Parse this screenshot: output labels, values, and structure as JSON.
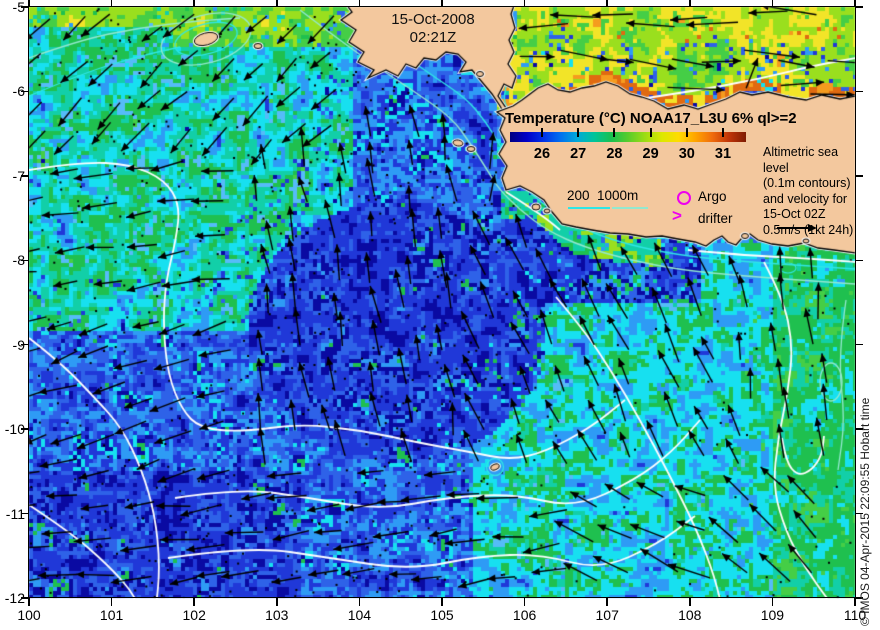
{
  "datestamp": {
    "date": "15-Oct-2008",
    "time": "02:21Z"
  },
  "colorbar": {
    "title": "Temperature (°C) NOAA17_L3U 6% ql>=2",
    "tick_labels": [
      "26",
      "27",
      "28",
      "29",
      "30",
      "31"
    ],
    "gradient": [
      "#000080",
      "#0000C8",
      "#0032E8",
      "#0070F0",
      "#00AAD8",
      "#00C49A",
      "#18C050",
      "#58CC2C",
      "#9CDC14",
      "#DCE800",
      "#FFDC00",
      "#FFA400",
      "#F06C0C",
      "#C03408",
      "#7E1C02"
    ]
  },
  "depth_legend": {
    "label": "200  1000m",
    "contour_200_color": "#2FE6E6",
    "contour_1000_color": "#93E8CF"
  },
  "observations": {
    "argo_label": "Argo",
    "drifter_label": "drifter",
    "drifter_symbol": ">",
    "marker_color": "#EE00EE"
  },
  "annotation": {
    "lines": [
      "Altimetric sea level",
      "(0.1m contours)",
      "and velocity for",
      "15-Oct 02Z",
      "0.5m/s (1kt 24h)"
    ]
  },
  "credit": "© IMOS 04-Apr-2015 22:09:55 Hobart time",
  "axes": {
    "x_tick_labels": [
      "100",
      "101",
      "102",
      "103",
      "104",
      "105",
      "106",
      "107",
      "108",
      "109",
      "110"
    ],
    "y_tick_labels": [
      "-5",
      "-6",
      "-7",
      "-8",
      "-9",
      "-10",
      "-11",
      "-12"
    ]
  },
  "map_colors": {
    "land": "#F3C89E",
    "coast_halo": "#FFFFFF",
    "coast_line": "#000000",
    "sealevel_contour": "#FFFFFF",
    "arrow": "#000000",
    "ocean": {
      "navy": "#0A0AA2",
      "royal": "#2038D8",
      "blue3": "#2E62E8",
      "azure": "#2E9BF5",
      "sky": "#55BCF8",
      "cyan": "#17E0F0",
      "teal": "#12CFA8",
      "green": "#1FC04F",
      "green2": "#45CE46",
      "ygreen": "#9ADF1E",
      "yellow": "#F2E428",
      "orange": "#F59B1E",
      "dorange": "#E06A10"
    }
  }
}
